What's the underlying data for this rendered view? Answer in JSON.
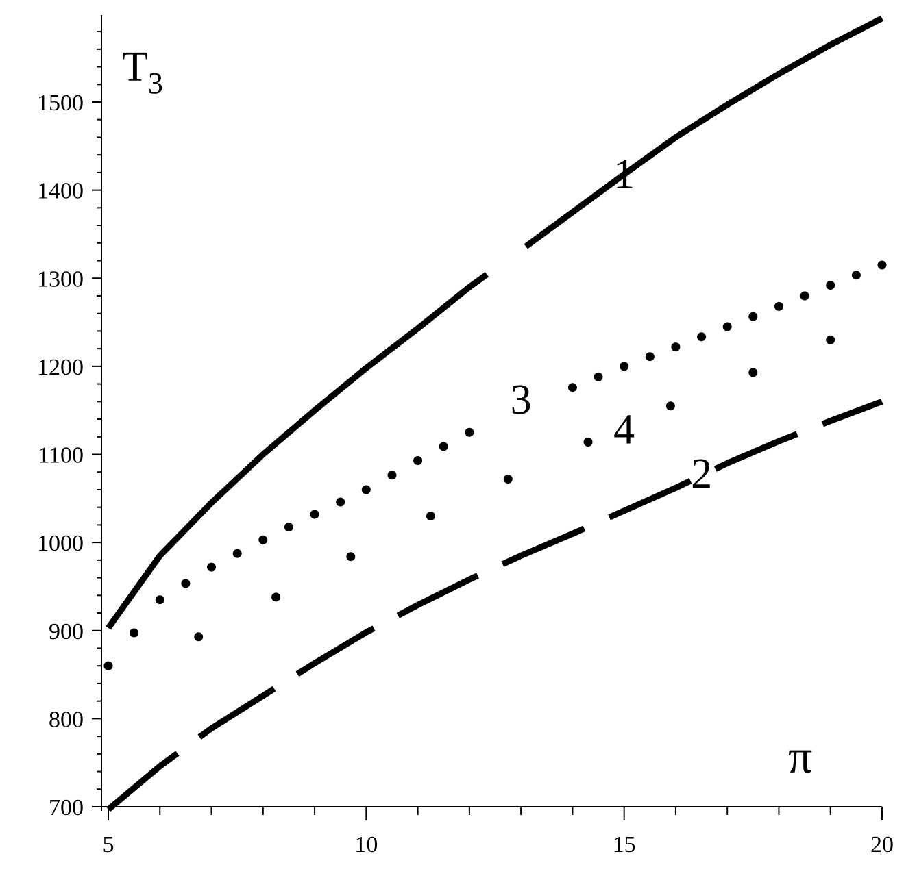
{
  "chart_data": {
    "type": "line",
    "ylabel": "T",
    "ylabel_subscript": "3",
    "xlabel": "π",
    "xlim": [
      5,
      20
    ],
    "ylim": [
      700,
      1600
    ],
    "x_ticks": [
      5,
      10,
      15,
      20
    ],
    "y_ticks": [
      700,
      800,
      900,
      1000,
      1100,
      1200,
      1300,
      1400,
      1500
    ],
    "grid": false,
    "series": [
      {
        "name": "1",
        "style": "solid",
        "x": [
          5,
          6,
          7,
          8,
          9,
          10,
          11,
          12,
          13,
          14,
          15,
          16,
          17,
          18,
          19,
          20
        ],
        "y": [
          903,
          985,
          1045,
          1100,
          1150,
          1198,
          1243,
          1290,
          1332,
          1375,
          1418,
          1460,
          1497,
          1532,
          1565,
          1595
        ]
      },
      {
        "name": "2",
        "style": "dashed",
        "x": [
          5,
          6,
          7,
          8,
          9,
          10,
          11,
          12,
          13,
          14,
          15,
          16,
          17,
          18,
          19,
          20
        ],
        "y": [
          697,
          746,
          789,
          826,
          863,
          898,
          929,
          958,
          985,
          1010,
          1036,
          1062,
          1090,
          1115,
          1138,
          1160
        ]
      },
      {
        "name": "3",
        "style": "dotted",
        "x": [
          5,
          6,
          7,
          8,
          9,
          10,
          11,
          12,
          13,
          14,
          15,
          16,
          17,
          18,
          19,
          20
        ],
        "y": [
          860,
          935,
          972,
          1003,
          1032,
          1060,
          1093,
          1125,
          1152,
          1176,
          1200,
          1222,
          1245,
          1268,
          1292,
          1315
        ]
      },
      {
        "name": "4",
        "style": "sparse-dotted",
        "x": [
          5,
          6.75,
          8.25,
          9.7,
          11.25,
          12.75,
          14.3,
          15.9,
          17.5,
          19.0
        ],
        "y": [
          860,
          893,
          938,
          984,
          1030,
          1072,
          1114,
          1155,
          1193,
          1230
        ]
      }
    ],
    "annotations": [
      {
        "text": "1",
        "x": 15.0,
        "y": 1418
      },
      {
        "text": "2",
        "x": 16.5,
        "y": 1078
      },
      {
        "text": "3",
        "x": 13.0,
        "y": 1162
      },
      {
        "text": "4",
        "x": 15.0,
        "y": 1128
      }
    ]
  }
}
